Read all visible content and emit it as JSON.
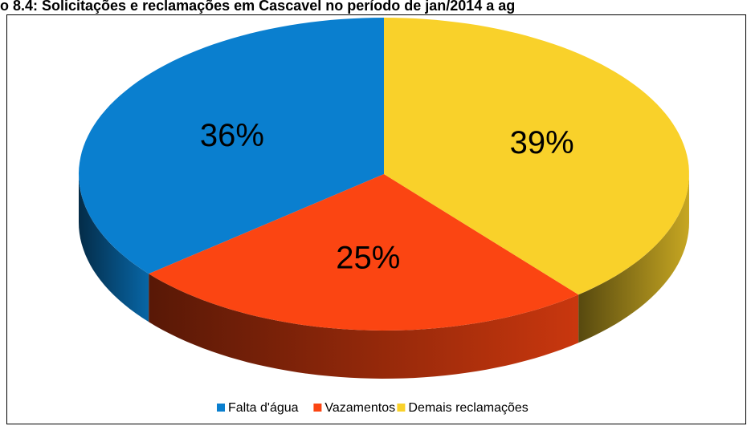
{
  "chart_data": {
    "type": "pie",
    "title": "o 8.4: Solicitações e reclamações em Cascavel no período de jan/2014 a ag",
    "categories": [
      "Falta d'água",
      "Vazamentos",
      "Demais reclamações"
    ],
    "values": [
      36,
      25,
      39
    ],
    "value_labels": [
      "36%",
      "25%",
      "39%"
    ],
    "colors": [
      "#0a7fcf",
      "#fb4512",
      "#f9d12a"
    ],
    "legend": "bottom"
  }
}
